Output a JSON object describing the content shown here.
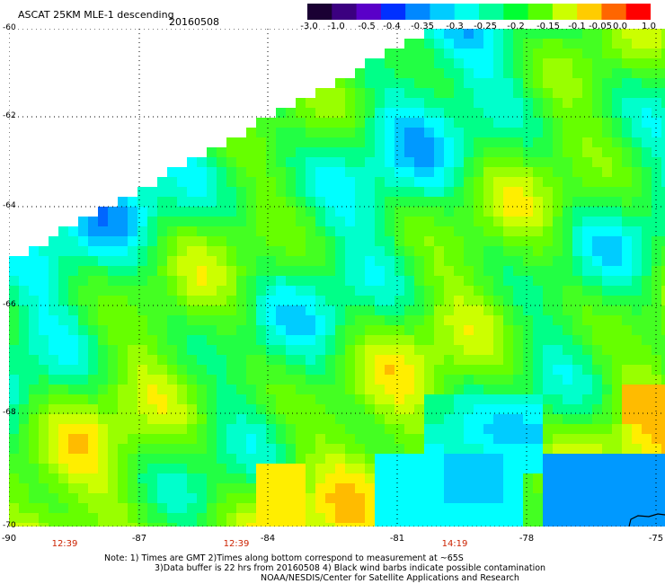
{
  "header": {
    "title": "ASCAT 25KM MLE-1 descending",
    "date": "20160508"
  },
  "colorbar": {
    "labels": [
      "-3.0",
      "-1.0",
      "-0.5",
      "-0.4",
      "-0.35",
      "-0.3",
      "-0.25",
      "-0.2",
      "-0.15",
      "-0.1",
      "-0.05",
      "0.0",
      "1.0"
    ],
    "colors": [
      "#1a0033",
      "#3b0080",
      "#5a00c8",
      "#0030ff",
      "#0088ff",
      "#00ccff",
      "#00ffee",
      "#00ff99",
      "#00ff33",
      "#55ff00",
      "#ccff00",
      "#ffcc00",
      "#ff6600",
      "#ff0000"
    ]
  },
  "map": {
    "lat_labels": [
      "-60",
      "-62",
      "-64",
      "-66",
      "-68",
      "-70"
    ],
    "lon_labels": [
      "-90",
      "-87",
      "-84",
      "-81",
      "-78",
      "-75"
    ],
    "time_labels": [
      "12:39",
      "12:39",
      "14:19"
    ],
    "colors": {
      "field_green": "#33ff33",
      "field_cyan": "#00ffff",
      "field_blue": "#0088ff",
      "field_yellow": "#ccff00",
      "field_orange": "#ffbb00",
      "grid": "#000000"
    }
  },
  "notes": {
    "line1": "Note: 1) Times are GMT 2)Times along bottom correspond to measurement at ~65S",
    "line2": "3)Data buffer is 22 hrs from 20160508 4) Black wind barbs indicate possible contamination",
    "line3": "NOAA/NESDIS/Center for Satellite Applications and Research"
  }
}
